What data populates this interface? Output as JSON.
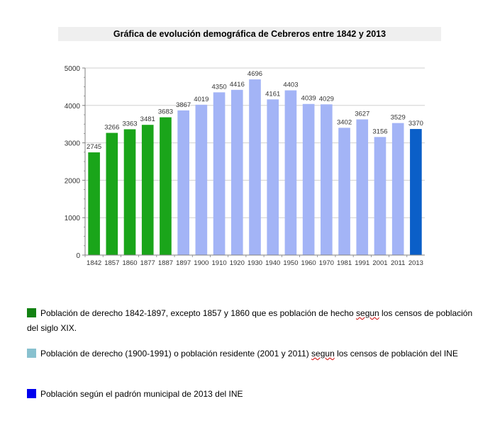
{
  "chart_data": {
    "type": "bar",
    "title": "Gráfica de evolución demográfica de Cebreros entre 1842 y 2013",
    "categories": [
      "1842",
      "1857",
      "1860",
      "1877",
      "1887",
      "1897",
      "1900",
      "1910",
      "1920",
      "1930",
      "1940",
      "1950",
      "1960",
      "1970",
      "1981",
      "1991",
      "2001",
      "2011",
      "2013"
    ],
    "values": [
      2745,
      3266,
      3363,
      3481,
      3683,
      3867,
      4019,
      4350,
      4416,
      4696,
      4161,
      4403,
      4039,
      4029,
      3402,
      3627,
      3156,
      3529,
      3370
    ],
    "value_labels": [
      "2745",
      "3266",
      "3363",
      "3481",
      "3683",
      "3867",
      "4019",
      "4350",
      "4416",
      "4696",
      "4161",
      "4403",
      "4039",
      "4029",
      "3402",
      "3627",
      "3156",
      "3529",
      "3370"
    ],
    "bar_colors": [
      "#1aa51a",
      "#1aa51a",
      "#1aa51a",
      "#1aa51a",
      "#1aa51a",
      "#a3b4f6",
      "#a3b4f6",
      "#a3b4f6",
      "#a3b4f6",
      "#a3b4f6",
      "#a3b4f6",
      "#a3b4f6",
      "#a3b4f6",
      "#a3b4f6",
      "#a3b4f6",
      "#a3b4f6",
      "#a3b4f6",
      "#a3b4f6",
      "#0b5fc8"
    ],
    "ylim": [
      0,
      5000
    ],
    "yticks": [
      0,
      1000,
      2000,
      3000,
      4000,
      5000
    ],
    "ytick_labels": [
      "0",
      "1000",
      "2000",
      "3000",
      "4000",
      "5000"
    ],
    "xlabel": "",
    "ylabel": "",
    "grid": true
  },
  "legend": [
    {
      "color": "#128212",
      "text_before": "Población de derecho 1842-1897,  excepto 1857 y 1860  que es población de hecho ",
      "squiggle": "segun",
      "text_after": " los censos de población del siglo XIX."
    },
    {
      "color": "#88c1cf",
      "text_before": "Población de derecho (1900-1991)  o población residente (2001 y 2011)  ",
      "squiggle": "segun",
      "text_after": " los censos de población del INE"
    },
    {
      "color": "#0000ee",
      "text_before": "Población según el padrón municipal de 2013  del INE",
      "squiggle": "",
      "text_after": ""
    }
  ]
}
